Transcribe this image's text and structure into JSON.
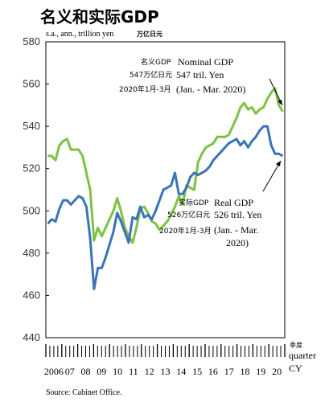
{
  "chart_data": {
    "type": "line",
    "title": "名义和实际GDP",
    "unit_en": "s.a., ann., trillion yen",
    "unit_ja": "万亿日元",
    "ylim": [
      440,
      580
    ],
    "yticks": [
      "580",
      "560",
      "540",
      "520",
      "500",
      "480",
      "460",
      "440"
    ],
    "years": [
      "2006",
      "07",
      "08",
      "09",
      "10",
      "11",
      "12",
      "13",
      "14",
      "15",
      "16",
      "17",
      "18",
      "19",
      "20"
    ],
    "quarter_label_ja": "季度",
    "quarter_label_en": "quarter",
    "cy_label": "CY",
    "series": [
      {
        "name": "Nominal GDP",
        "color": "#7dc243",
        "values": [
          526,
          526,
          524,
          531,
          533,
          534,
          529,
          529,
          529,
          526,
          518,
          510,
          486,
          492,
          488,
          492,
          496,
          500,
          506,
          500,
          492,
          488,
          485,
          492,
          501,
          502,
          499,
          495,
          494,
          491,
          493,
          495,
          498,
          502,
          507,
          503,
          512,
          511,
          510,
          523,
          527,
          530,
          531,
          532,
          535,
          535,
          535,
          536,
          540,
          544,
          549,
          551,
          548,
          549,
          546,
          548,
          549,
          553,
          556,
          558,
          550,
          547
        ]
      },
      {
        "name": "Real GDP",
        "color": "#3a73b8",
        "values": [
          494,
          496,
          495,
          501,
          505,
          505,
          503,
          505,
          507,
          506,
          502,
          487,
          463,
          473,
          473,
          478,
          484,
          490,
          499,
          495,
          490,
          485,
          497,
          496,
          502,
          497,
          498,
          496,
          500,
          505,
          510,
          511,
          512,
          518,
          508,
          508,
          511,
          516,
          518,
          517,
          518,
          519,
          521,
          524,
          526,
          528,
          530,
          532,
          533,
          534,
          531,
          533,
          530,
          533,
          535,
          538,
          540,
          540,
          531,
          527,
          527,
          526
        ]
      }
    ],
    "annotations": {
      "nominal": {
        "label_ja": "名义GDP",
        "label_en": "Nominal GDP",
        "value_ja": "547万亿日元",
        "value_en": "547 tril. Yen",
        "period_ja": "2020年1月-3月",
        "period_en": "(Jan. - Mar. 2020)"
      },
      "real": {
        "label_ja": "实际GDP",
        "label_en": "Real GDP",
        "value_ja": "526万亿日元",
        "value_en": "526 tril. Yen",
        "period_ja": "2020年1月-3月",
        "period_en_1": "(Jan. - Mar.",
        "period_en_2": "2020)"
      }
    },
    "source": "Source: Cabinet Office."
  }
}
